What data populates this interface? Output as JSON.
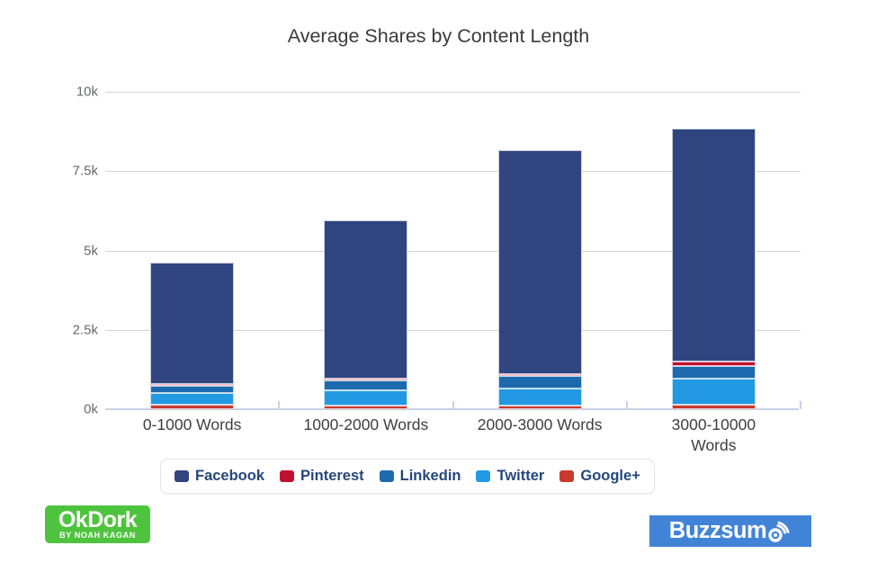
{
  "chart_data": {
    "type": "bar",
    "stacked": true,
    "title": "Average Shares by Content Length",
    "categories": [
      {
        "label": "0-1000 Words",
        "lines": [
          "0-1000 Words"
        ]
      },
      {
        "label": "1000-2000 Words",
        "lines": [
          "1000-2000 Words"
        ]
      },
      {
        "label": "2000-3000 Words",
        "lines": [
          "2000-3000 Words"
        ]
      },
      {
        "label": "3000-10000 Words",
        "lines": [
          "3000-10000",
          "Words"
        ]
      }
    ],
    "series": [
      {
        "name": "Facebook",
        "color": "#30457f",
        "values": [
          3800,
          5000,
          7050,
          7350
        ]
      },
      {
        "name": "Pinterest",
        "color": "#c01030",
        "values": [
          50,
          50,
          50,
          150
        ]
      },
      {
        "name": "Linkedin",
        "color": "#1d6bae",
        "values": [
          250,
          300,
          400,
          400
        ]
      },
      {
        "name": "Twitter",
        "color": "#2299e2",
        "values": [
          350,
          500,
          550,
          800
        ]
      },
      {
        "name": "Google+",
        "color": "#c53b2e",
        "values": [
          150,
          100,
          100,
          150
        ]
      }
    ],
    "stack_order_bottom_to_top": [
      "Google+",
      "Twitter",
      "Linkedin",
      "Pinterest",
      "Facebook"
    ],
    "totals": [
      4600,
      5950,
      8150,
      8850
    ],
    "ylim": [
      0,
      10000
    ],
    "yticks": [
      {
        "label": "0k",
        "value": 0
      },
      {
        "label": "2.5k",
        "value": 2500
      },
      {
        "label": "5k",
        "value": 5000
      },
      {
        "label": "7.5k",
        "value": 7500
      },
      {
        "label": "10k",
        "value": 10000
      }
    ],
    "grid": true,
    "legend_position": "bottom"
  },
  "palette": {
    "grid": "#d4d4d4",
    "axis": "#c7d2e6",
    "title_text": "#3a3a3a",
    "axis_label": "#67696c",
    "xlabel": "#3e3f42",
    "legend_text": "#25477b"
  },
  "logos": {
    "okdork": {
      "name": "OkDork",
      "tagline": "BY NOAH KAGAN",
      "bg_color": "#4ec43e"
    },
    "buzzsumo": {
      "label": "Buzzsumo",
      "text_part": "Buzzsum",
      "bg_color": "#4184d7"
    }
  }
}
